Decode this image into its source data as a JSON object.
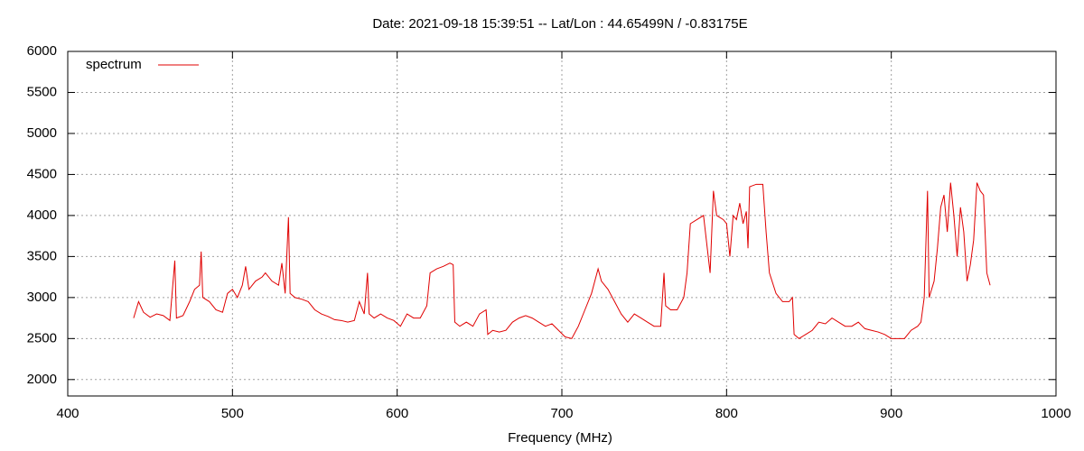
{
  "chart_data": {
    "type": "line",
    "title": "Date: 2021-09-18 15:39:51  --  Lat/Lon : 44.65499N / -0.83175E",
    "x_label": "Frequency (MHz)",
    "x": [
      440,
      443,
      446,
      450,
      454,
      458,
      462,
      465,
      466,
      470,
      474,
      477,
      480,
      481,
      482,
      486,
      490,
      494,
      497,
      500,
      503,
      506,
      508,
      510,
      514,
      518,
      520,
      524,
      528,
      530,
      532,
      534,
      535,
      538,
      542,
      546,
      550,
      554,
      558,
      562,
      566,
      570,
      574,
      577,
      580,
      582,
      583,
      586,
      590,
      594,
      598,
      602,
      606,
      610,
      614,
      618,
      620,
      624,
      628,
      632,
      634,
      635,
      638,
      642,
      646,
      650,
      654,
      655,
      658,
      662,
      666,
      670,
      674,
      678,
      682,
      686,
      690,
      694,
      698,
      702,
      706,
      710,
      714,
      718,
      720,
      722,
      724,
      728,
      732,
      736,
      740,
      744,
      748,
      752,
      756,
      760,
      762,
      763,
      766,
      770,
      774,
      776,
      778,
      782,
      786,
      790,
      792,
      794,
      798,
      800,
      802,
      804,
      806,
      808,
      810,
      812,
      813,
      814,
      818,
      822,
      824,
      826,
      830,
      834,
      838,
      840,
      841,
      844,
      848,
      852,
      856,
      860,
      864,
      868,
      872,
      876,
      880,
      884,
      888,
      892,
      896,
      900,
      904,
      908,
      912,
      916,
      918,
      920,
      922,
      923,
      926,
      928,
      930,
      932,
      934,
      936,
      938,
      940,
      942,
      944,
      946,
      948,
      950,
      952,
      954,
      956,
      958,
      960
    ],
    "series": [
      {
        "name": "spectrum",
        "color": "#e00000",
        "values": [
          2750,
          2950,
          2820,
          2760,
          2800,
          2780,
          2720,
          3450,
          2750,
          2780,
          2950,
          3100,
          3150,
          3560,
          3000,
          2950,
          2850,
          2820,
          3050,
          3100,
          3000,
          3150,
          3380,
          3100,
          3200,
          3250,
          3300,
          3200,
          3150,
          3420,
          3050,
          3980,
          3050,
          3000,
          2980,
          2950,
          2850,
          2800,
          2770,
          2730,
          2720,
          2700,
          2720,
          2950,
          2800,
          3300,
          2800,
          2750,
          2800,
          2750,
          2720,
          2650,
          2800,
          2750,
          2750,
          2900,
          3300,
          3350,
          3380,
          3420,
          3400,
          2700,
          2650,
          2700,
          2650,
          2800,
          2850,
          2550,
          2600,
          2580,
          2600,
          2700,
          2750,
          2780,
          2750,
          2700,
          2650,
          2680,
          2600,
          2520,
          2500,
          2650,
          2850,
          3050,
          3200,
          3350,
          3200,
          3100,
          2950,
          2800,
          2700,
          2800,
          2750,
          2700,
          2650,
          2650,
          3300,
          2900,
          2850,
          2850,
          3000,
          3300,
          3900,
          3950,
          4000,
          3300,
          4300,
          4000,
          3950,
          3900,
          3500,
          4000,
          3950,
          4150,
          3900,
          4050,
          3600,
          4350,
          4380,
          4380,
          3800,
          3300,
          3050,
          2950,
          2950,
          3000,
          2550,
          2500,
          2550,
          2600,
          2700,
          2680,
          2750,
          2700,
          2650,
          2650,
          2700,
          2620,
          2600,
          2580,
          2550,
          2500,
          2500,
          2500,
          2600,
          2650,
          2700,
          3000,
          4300,
          3000,
          3200,
          3600,
          4100,
          4250,
          3800,
          4400,
          4000,
          3500,
          4100,
          3800,
          3200,
          3400,
          3700,
          4400,
          4300,
          4250,
          3300,
          3150
        ]
      }
    ],
    "xlim": [
      400,
      1000
    ],
    "xticks": [
      400,
      500,
      600,
      700,
      800,
      900,
      1000
    ],
    "ylim": [
      1800,
      6000
    ],
    "yticks": [
      2000,
      2500,
      3000,
      3500,
      4000,
      4500,
      5000,
      5500,
      6000
    ],
    "grid": true,
    "legend": "top-left"
  }
}
